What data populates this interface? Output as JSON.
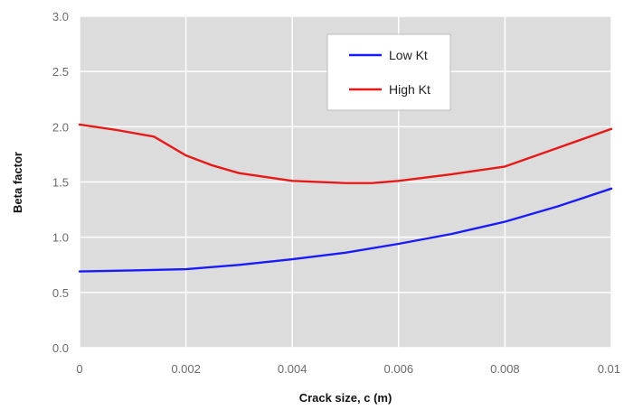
{
  "chart_data": {
    "type": "line",
    "title": "",
    "xlabel": "Crack size, c (m)",
    "ylabel": "Beta factor",
    "xlim": [
      0,
      0.01
    ],
    "ylim": [
      0,
      3.0
    ],
    "x_ticks": [
      {
        "value": 0,
        "label": "0"
      },
      {
        "value": 0.002,
        "label": "0.002"
      },
      {
        "value": 0.004,
        "label": "0.004"
      },
      {
        "value": 0.006,
        "label": "0.006"
      },
      {
        "value": 0.008,
        "label": "0.008"
      },
      {
        "value": 0.01,
        "label": "0.01"
      }
    ],
    "y_ticks": [
      {
        "value": 0,
        "label": "0.0"
      },
      {
        "value": 0.5,
        "label": "0.5"
      },
      {
        "value": 1.0,
        "label": "1.0"
      },
      {
        "value": 1.5,
        "label": "1.5"
      },
      {
        "value": 2.0,
        "label": "2.0"
      },
      {
        "value": 2.5,
        "label": "2.5"
      },
      {
        "value": 3.0,
        "label": "3.0"
      }
    ],
    "grid": true,
    "plot_background": "#dcdcdc",
    "grid_color": "#ffffff",
    "legend": {
      "placement": "top-center"
    },
    "series": [
      {
        "name": "Low Kt",
        "color": "#1a1aff",
        "x": [
          0,
          0.001,
          0.002,
          0.003,
          0.004,
          0.005,
          0.006,
          0.007,
          0.008,
          0.009,
          0.01
        ],
        "y": [
          0.69,
          0.7,
          0.71,
          0.75,
          0.8,
          0.86,
          0.94,
          1.03,
          1.14,
          1.28,
          1.44
        ]
      },
      {
        "name": "High Kt",
        "color": "#e81818",
        "x": [
          0,
          0.0007,
          0.0014,
          0.002,
          0.0025,
          0.003,
          0.004,
          0.005,
          0.0055,
          0.006,
          0.007,
          0.008,
          0.009,
          0.01
        ],
        "y": [
          2.02,
          1.97,
          1.91,
          1.74,
          1.65,
          1.58,
          1.51,
          1.49,
          1.49,
          1.51,
          1.57,
          1.64,
          1.81,
          1.98
        ]
      }
    ]
  }
}
